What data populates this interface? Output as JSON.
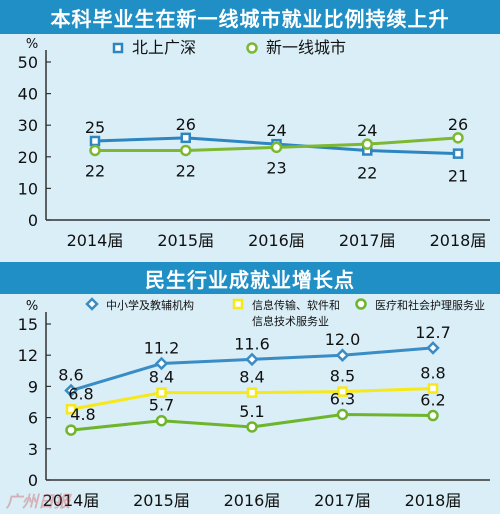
{
  "chart_data": [
    {
      "type": "line",
      "title": "本科毕业生在新一线城市就业比例持续上升",
      "ylabel": "%",
      "categories": [
        "2014届",
        "2015届",
        "2016届",
        "2017届",
        "2018届"
      ],
      "ylim": [
        0,
        50
      ],
      "yticks": [
        0,
        10,
        20,
        30,
        40,
        50
      ],
      "series": [
        {
          "name": "北上广深",
          "values": [
            25,
            26,
            24,
            22,
            21
          ],
          "color": "#2e86c1",
          "marker": "square"
        },
        {
          "name": "新一线城市",
          "values": [
            22,
            22,
            23,
            24,
            26
          ],
          "color": "#7cb832",
          "marker": "circle"
        }
      ],
      "legend": "top",
      "grid": false
    },
    {
      "type": "line",
      "title": "民生行业成就业增长点",
      "ylabel": "%",
      "categories": [
        "2014届",
        "2015届",
        "2016届",
        "2017届",
        "2018届"
      ],
      "ylim": [
        0,
        15
      ],
      "yticks": [
        0,
        3,
        6,
        9,
        12,
        15
      ],
      "series": [
        {
          "name": "中小学及教辅机构",
          "values": [
            8.6,
            11.2,
            11.6,
            12.0,
            12.7
          ],
          "color": "#3a8cc4",
          "marker": "diamond"
        },
        {
          "name": "信息传输、软件和信息技术服务业",
          "values": [
            6.8,
            8.4,
            8.4,
            8.5,
            8.8
          ],
          "color": "#f7e81a",
          "marker": "square"
        },
        {
          "name": "医疗和社会护理服务业",
          "values": [
            4.8,
            5.7,
            5.1,
            6.3,
            6.2
          ],
          "color": "#6fb52c",
          "marker": "circle"
        }
      ],
      "legend": "top",
      "grid": false
    }
  ],
  "charts": [
    {
      "legend_labels": [
        "北上广深",
        "新一线城市"
      ]
    },
    {
      "legend_labels": [
        "中小学及教辅机构",
        "信息传输、软件和\n信息技术服务业",
        "医疗和社会护理服务业"
      ]
    }
  ],
  "watermark": "广州日报"
}
